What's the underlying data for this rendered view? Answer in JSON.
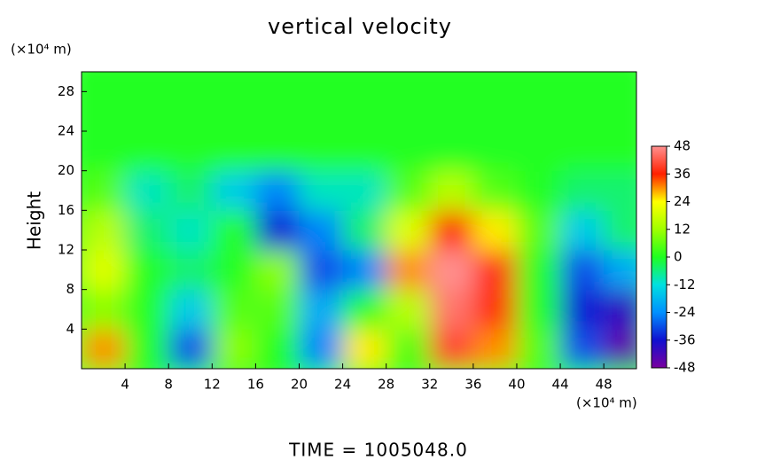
{
  "chart_data": {
    "type": "heatmap",
    "title": "vertical velocity",
    "ylabel": "Height",
    "y_unit_label": "(×10⁴ m)",
    "x_unit_label": "(×10⁴ m)",
    "footer": "TIME = 1005048.0",
    "x": [
      2,
      6,
      10,
      14,
      18,
      22,
      26,
      30,
      34,
      38,
      42,
      46,
      50
    ],
    "y": [
      2,
      6,
      10,
      14,
      18,
      22,
      26,
      30
    ],
    "z": [
      [
        30,
        0,
        -30,
        10,
        0,
        -25,
        25,
        5,
        40,
        30,
        5,
        -30,
        -45
      ],
      [
        10,
        0,
        -15,
        5,
        5,
        -20,
        0,
        15,
        45,
        35,
        0,
        -35,
        -40
      ],
      [
        20,
        0,
        -5,
        0,
        10,
        -30,
        -25,
        30,
        48,
        38,
        0,
        -30,
        -20
      ],
      [
        15,
        -5,
        -10,
        0,
        -35,
        -25,
        -5,
        20,
        36,
        25,
        5,
        -15,
        -5
      ],
      [
        5,
        -10,
        -5,
        -15,
        -25,
        -10,
        -10,
        5,
        15,
        5,
        0,
        -5,
        -5
      ],
      [
        0,
        0,
        0,
        0,
        0,
        0,
        0,
        0,
        0,
        0,
        0,
        0,
        0
      ],
      [
        0,
        0,
        0,
        0,
        0,
        0,
        0,
        0,
        0,
        0,
        0,
        0,
        0
      ],
      [
        0,
        0,
        0,
        0,
        0,
        0,
        0,
        0,
        0,
        0,
        0,
        0,
        0
      ]
    ],
    "xlim": [
      0,
      51
    ],
    "ylim": [
      0,
      30
    ],
    "xticks": [
      4,
      8,
      12,
      16,
      20,
      24,
      28,
      32,
      36,
      40,
      44,
      48
    ],
    "yticks": [
      4,
      8,
      12,
      16,
      20,
      24,
      28
    ],
    "zlim": [
      -48,
      48
    ],
    "zticks": [
      -48,
      -36,
      -24,
      -12,
      0,
      12,
      24,
      36,
      48
    ],
    "colormap": [
      "#7a00a0",
      "#1010d0",
      "#0090ff",
      "#00e0e0",
      "#20ff20",
      "#a0ff00",
      "#ffff00",
      "#ff2000",
      "#ff9090"
    ]
  }
}
